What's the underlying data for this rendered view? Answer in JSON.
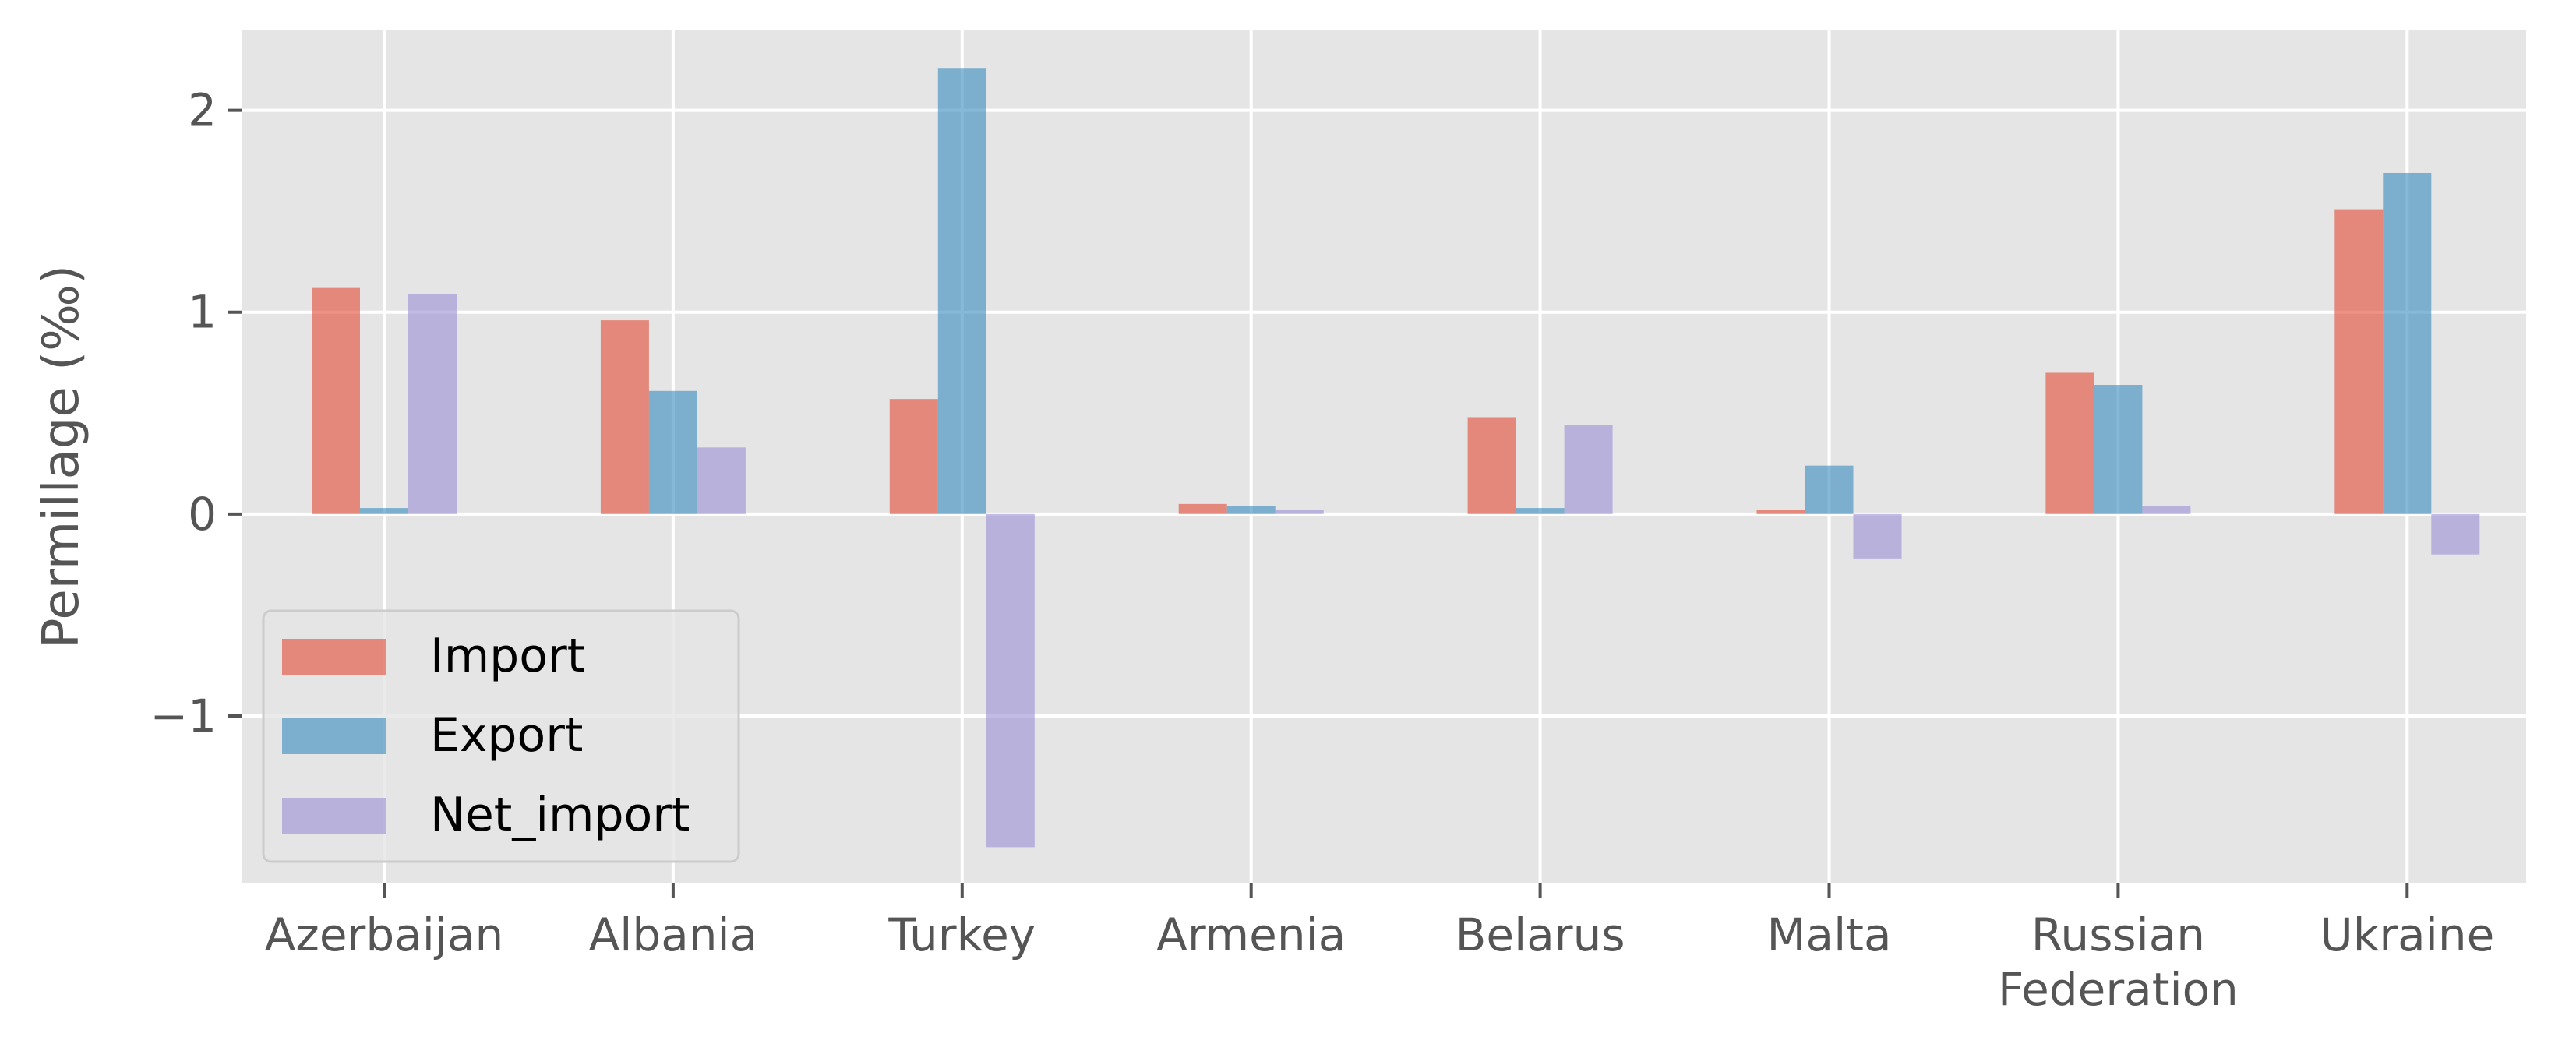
{
  "chart_data": {
    "type": "bar",
    "title": "",
    "xlabel": "",
    "ylabel": "Permillage (‰)",
    "categories": [
      "Azerbaijan",
      "Albania",
      "Turkey",
      "Armenia",
      "Belarus",
      "Malta",
      "Russian Federation",
      "Ukraine"
    ],
    "category_lines": [
      [
        "Azerbaijan"
      ],
      [
        "Albania"
      ],
      [
        "Turkey"
      ],
      [
        "Armenia"
      ],
      [
        "Belarus"
      ],
      [
        "Malta"
      ],
      [
        "Russian",
        "Federation"
      ],
      [
        "Ukraine"
      ]
    ],
    "series": [
      {
        "name": "Import",
        "color": "#E24A33",
        "values": [
          1.12,
          0.96,
          0.57,
          0.05,
          0.48,
          0.02,
          0.7,
          1.51
        ]
      },
      {
        "name": "Export",
        "color": "#348ABD",
        "values": [
          0.03,
          0.61,
          2.21,
          0.04,
          0.03,
          0.24,
          0.64,
          1.69
        ]
      },
      {
        "name": "Net_import",
        "color": "#988ED5",
        "values": [
          1.09,
          0.33,
          -1.65,
          0.02,
          0.44,
          -0.22,
          0.04,
          -0.2
        ]
      }
    ],
    "ylim": [
      -1.83,
      2.4
    ],
    "yticks": [
      -1,
      0,
      1,
      2
    ],
    "ytick_labels": [
      "−1",
      "0",
      "1",
      "2"
    ],
    "grid": true,
    "legend_position": "lower-left",
    "bar_alpha": 0.6,
    "background": "#E5E5E5"
  }
}
